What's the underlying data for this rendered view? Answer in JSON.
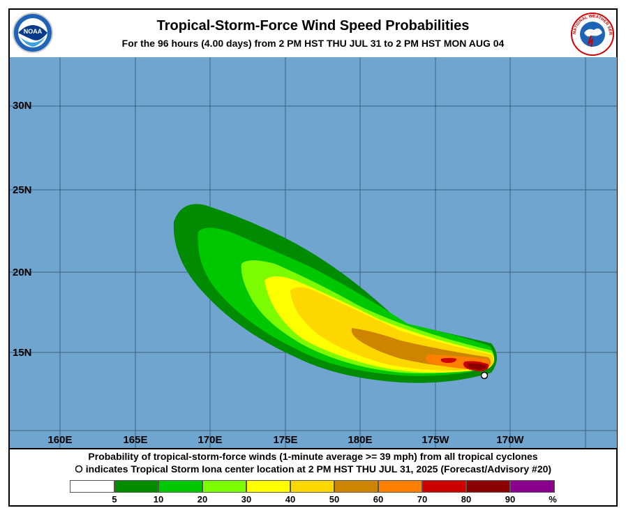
{
  "title": "Tropical-Storm-Force Wind Speed Probabilities",
  "subtitle": "For the  96 hours (4.00 days) from 2 PM HST THU JUL 31 to 2 PM HST MON AUG 04",
  "logos": {
    "left_text": "NOAA",
    "right_text": "NATIONAL WEATHER SERVICE"
  },
  "map": {
    "lat_labels": [
      "30N",
      "25N",
      "20N",
      "15N"
    ],
    "lon_labels": [
      "160E",
      "165E",
      "170E",
      "175E",
      "180E",
      "175W",
      "170W"
    ],
    "ocean_color": "#6fa5ce",
    "storm_marker": "storm-center-marker"
  },
  "footer": {
    "line1": "Probability of tropical-storm-force winds (1-minute average >= 39 mph) from all tropical cyclones",
    "line2": "indicates Tropical Storm Iona center location at 2 PM HST THU JUL 31, 2025 (Forecast/Advisory #20)"
  },
  "legend": {
    "ticks": [
      "5",
      "10",
      "20",
      "30",
      "40",
      "50",
      "60",
      "70",
      "80",
      "90",
      "%"
    ],
    "colors": [
      "#ffffff",
      "#008b00",
      "#00c800",
      "#7cfc00",
      "#ffff00",
      "#ffd700",
      "#cd8500",
      "#ff7f00",
      "#cd0000",
      "#8b0000",
      "#8b008b"
    ]
  }
}
